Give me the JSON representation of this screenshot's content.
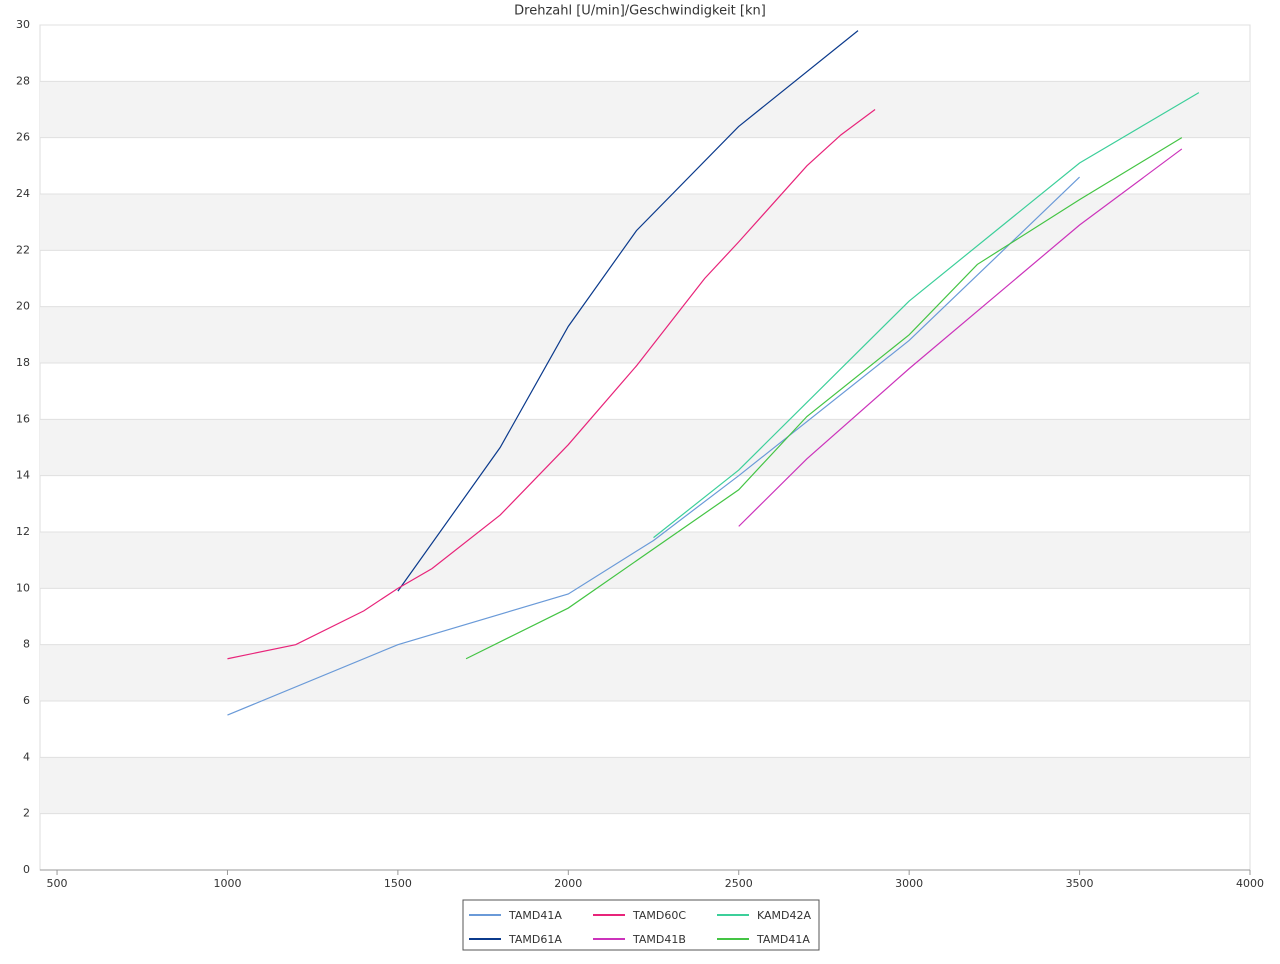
{
  "chart_data": {
    "type": "line",
    "title": "Drehzahl [U/min]/Geschwindigkeit [kn]",
    "xlim": [
      450,
      4000
    ],
    "xticks": [
      500,
      1000,
      1500,
      2000,
      2500,
      3000,
      3500,
      4000
    ],
    "ylim": [
      0,
      30
    ],
    "yticks": [
      0,
      2,
      4,
      6,
      8,
      10,
      12,
      14,
      16,
      18,
      20,
      22,
      24,
      26,
      28,
      30
    ],
    "grid": true,
    "legend": "bottom",
    "series": [
      {
        "name": "TAMD41A",
        "color": "#6a9ad8",
        "x": [
          1000,
          1500,
          2000,
          2250,
          2500,
          3000,
          3500
        ],
        "values": [
          5.5,
          8,
          9.8,
          11.7,
          14,
          18.8,
          24.6
        ]
      },
      {
        "name": "TAMD61A",
        "color": "#0b3a8c",
        "x": [
          1500,
          1800,
          2000,
          2200,
          2500,
          2850
        ],
        "values": [
          9.9,
          15,
          19.3,
          22.7,
          26.4,
          29.8
        ]
      },
      {
        "name": "TAMD60C",
        "color": "#e8247a",
        "x": [
          1000,
          1200,
          1400,
          1500,
          1600,
          1800,
          2000,
          2200,
          2400,
          2500,
          2700,
          2800,
          2900
        ],
        "values": [
          7.5,
          8,
          9.2,
          10,
          10.7,
          12.6,
          15.1,
          17.9,
          21,
          22.3,
          25,
          26.1,
          27
        ]
      },
      {
        "name": "TAMD41B",
        "color": "#cc33bb",
        "x": [
          2500,
          2700,
          3000,
          3500,
          3800
        ],
        "values": [
          12.2,
          14.6,
          17.8,
          22.9,
          25.6
        ]
      },
      {
        "name": "KAMD42A",
        "color": "#3ccf9a",
        "x": [
          2250,
          2500,
          3000,
          3500,
          3850
        ],
        "values": [
          11.8,
          14.2,
          20.2,
          25.1,
          27.6
        ]
      },
      {
        "name": "TAMD41A",
        "color": "#44c444",
        "x": [
          1700,
          2000,
          2500,
          2700,
          3000,
          3200,
          3500,
          3800
        ],
        "values": [
          7.5,
          9.3,
          13.5,
          16.1,
          19,
          21.5,
          23.8,
          26
        ]
      }
    ]
  }
}
